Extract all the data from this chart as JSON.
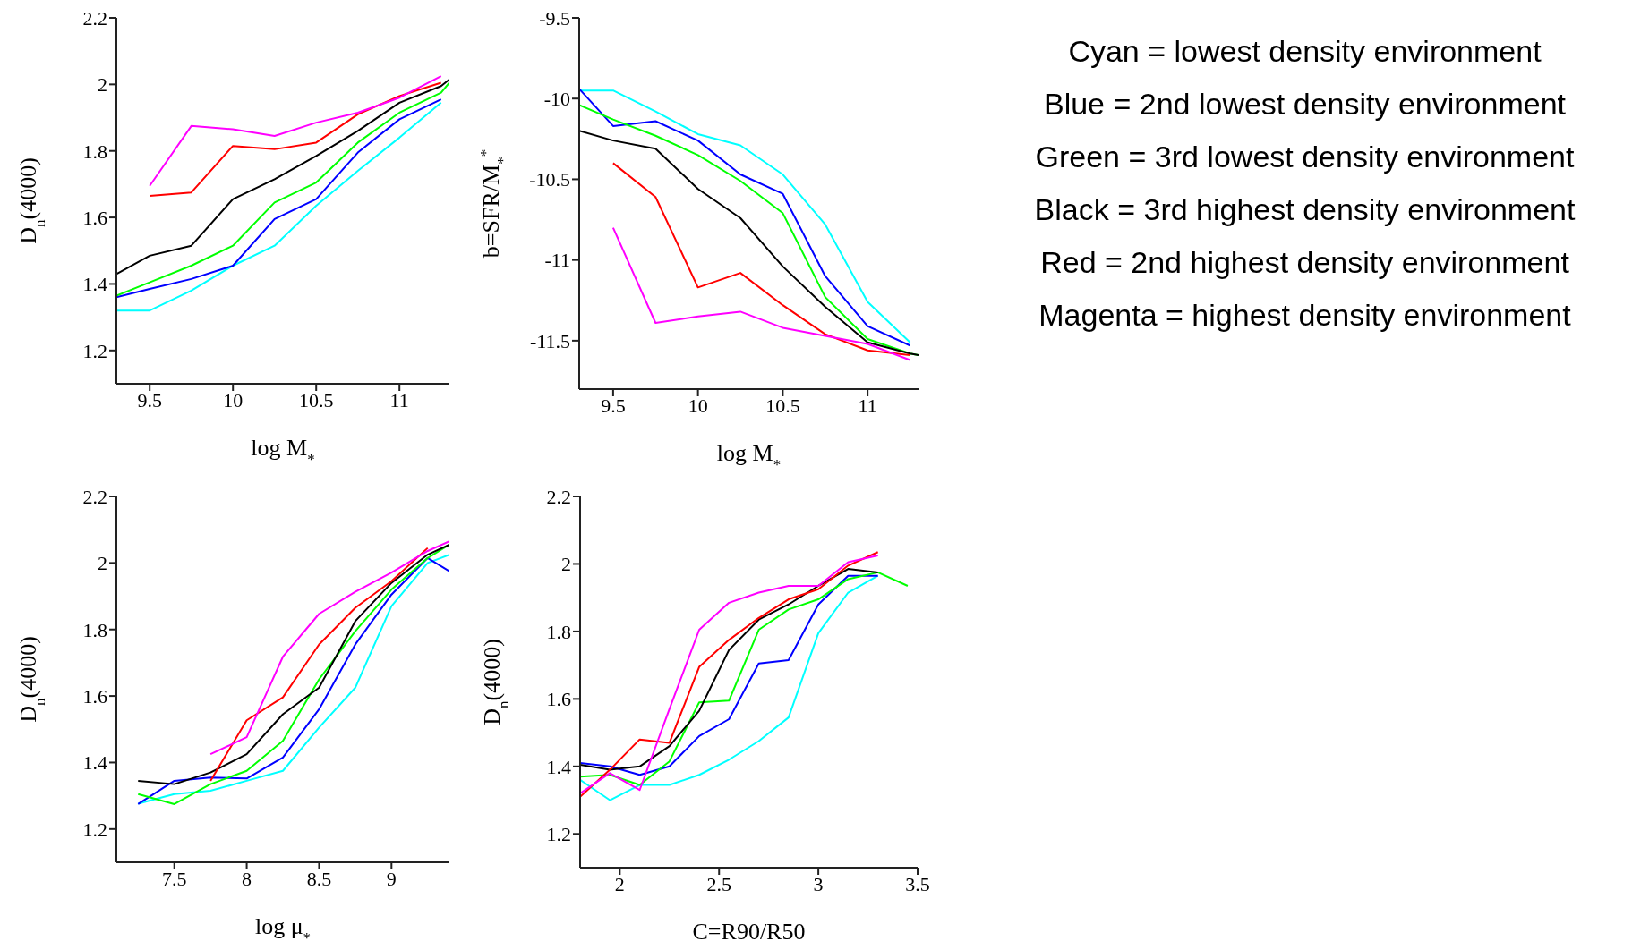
{
  "chart_data": [
    {
      "type": "line",
      "xlabel": "log M$_{*}$",
      "ylabel": "D$_{n}$(4000)",
      "xlim": [
        9.3,
        11.3
      ],
      "ylim": [
        1.1,
        2.2
      ],
      "xticks": [
        9.5,
        10,
        10.5,
        11
      ],
      "yticks": [
        1.2,
        1.4,
        1.6,
        1.8,
        2,
        2.2
      ],
      "grid": false,
      "legend": false,
      "x": [
        9.3,
        9.5,
        9.75,
        10,
        10.25,
        10.5,
        10.75,
        11,
        11.25,
        11.3
      ],
      "series": [
        {
          "color": "#00ffff",
          "values": [
            1.32,
            1.32,
            1.38,
            1.455,
            1.515,
            1.635,
            1.74,
            1.84,
            1.945,
            null
          ]
        },
        {
          "color": "#0000ff",
          "values": [
            1.36,
            1.385,
            1.415,
            1.455,
            1.595,
            1.655,
            1.795,
            1.895,
            1.955,
            null
          ]
        },
        {
          "color": "#00ff00",
          "values": [
            1.365,
            1.405,
            1.455,
            1.515,
            1.645,
            1.705,
            1.825,
            1.915,
            1.975,
            2.005
          ]
        },
        {
          "color": "#000000",
          "values": [
            1.43,
            1.485,
            1.515,
            1.655,
            1.715,
            1.785,
            1.86,
            1.945,
            1.995,
            2.015
          ]
        },
        {
          "color": "#ff0000",
          "values": [
            null,
            1.665,
            1.675,
            1.815,
            1.805,
            1.825,
            1.91,
            1.965,
            2.005,
            null
          ]
        },
        {
          "color": "#ff00ff",
          "values": [
            null,
            1.695,
            1.875,
            1.865,
            1.845,
            1.885,
            1.915,
            1.96,
            2.025,
            null
          ]
        }
      ]
    },
    {
      "type": "line",
      "xlabel": "log M$_{*}$",
      "ylabel": "b=SFR/M$_{*}$$^{*}$",
      "xlim": [
        9.3,
        11.3
      ],
      "ylim": [
        -11.8,
        -9.5
      ],
      "xticks": [
        9.5,
        10,
        10.5,
        11
      ],
      "yticks": [
        -11.5,
        -11,
        -10.5,
        -10,
        -9.5
      ],
      "grid": false,
      "legend": false,
      "x": [
        9.3,
        9.5,
        9.75,
        10,
        10.25,
        10.5,
        10.75,
        11,
        11.25,
        11.3
      ],
      "series": [
        {
          "color": "#00ffff",
          "values": [
            -9.95,
            -9.95,
            -10.08,
            -10.22,
            -10.29,
            -10.47,
            -10.78,
            -11.26,
            -11.51,
            null
          ]
        },
        {
          "color": "#0000ff",
          "values": [
            -9.94,
            -10.17,
            -10.14,
            -10.26,
            -10.47,
            -10.59,
            -11.1,
            -11.41,
            -11.53,
            null
          ]
        },
        {
          "color": "#00ff00",
          "values": [
            -10.04,
            -10.13,
            -10.23,
            -10.35,
            -10.51,
            -10.71,
            -11.23,
            -11.49,
            -11.58,
            -11.59
          ]
        },
        {
          "color": "#000000",
          "values": [
            -10.2,
            -10.26,
            -10.31,
            -10.56,
            -10.74,
            -11.04,
            -11.29,
            -11.51,
            -11.58,
            -11.59
          ]
        },
        {
          "color": "#ff0000",
          "values": [
            null,
            -10.4,
            -10.61,
            -11.17,
            -11.08,
            -11.28,
            -11.46,
            -11.56,
            -11.59,
            null
          ]
        },
        {
          "color": "#ff00ff",
          "values": [
            null,
            -10.8,
            -11.39,
            -11.35,
            -11.32,
            -11.42,
            -11.47,
            -11.52,
            -11.62,
            null
          ]
        }
      ]
    },
    {
      "type": "line",
      "xlabel": "log μ$_{*}$",
      "ylabel": "D$_{n}$(4000)",
      "xlim": [
        7.1,
        9.4
      ],
      "ylim": [
        1.1,
        2.2
      ],
      "xticks": [
        7.5,
        8,
        8.5,
        9
      ],
      "yticks": [
        1.2,
        1.4,
        1.6,
        1.8,
        2,
        2.2
      ],
      "grid": false,
      "legend": false,
      "x": [
        7.25,
        7.5,
        7.75,
        8,
        8.25,
        8.5,
        8.75,
        9,
        9.25,
        9.4
      ],
      "series": [
        {
          "color": "#00ffff",
          "values": [
            1.276,
            1.305,
            1.315,
            1.345,
            1.375,
            1.505,
            1.625,
            1.87,
            2.0,
            2.025
          ]
        },
        {
          "color": "#0000ff",
          "values": [
            1.275,
            1.345,
            1.355,
            1.352,
            1.415,
            1.56,
            1.755,
            1.905,
            2.015,
            1.975
          ]
        },
        {
          "color": "#00ff00",
          "values": [
            1.305,
            1.275,
            1.335,
            1.375,
            1.465,
            1.65,
            1.795,
            1.92,
            2.015,
            2.055
          ]
        },
        {
          "color": "#000000",
          "values": [
            1.345,
            1.335,
            1.37,
            1.425,
            1.545,
            1.625,
            1.825,
            1.94,
            2.025,
            2.055
          ]
        },
        {
          "color": "#ff0000",
          "values": [
            null,
            null,
            1.345,
            1.527,
            1.596,
            1.755,
            1.865,
            1.945,
            2.045,
            null
          ]
        },
        {
          "color": "#ff00ff",
          "values": [
            null,
            null,
            1.425,
            1.476,
            1.718,
            1.847,
            1.913,
            1.971,
            2.036,
            2.065
          ]
        }
      ]
    },
    {
      "type": "line",
      "xlabel": "C=R90/R50",
      "ylabel": "D$_{n}$(4000)",
      "xlim": [
        1.8,
        3.5
      ],
      "ylim": [
        1.1,
        2.2
      ],
      "xticks": [
        2,
        2.5,
        3,
        3.5
      ],
      "yticks": [
        1.2,
        1.4,
        1.6,
        1.8,
        2,
        2.2
      ],
      "grid": false,
      "legend": false,
      "x": [
        1.8,
        1.95,
        2.1,
        2.25,
        2.4,
        2.55,
        2.7,
        2.85,
        3,
        3.15,
        3.3,
        3.45
      ],
      "series": [
        {
          "color": "#00ffff",
          "values": [
            1.36,
            1.3,
            1.345,
            1.345,
            1.375,
            1.42,
            1.475,
            1.545,
            1.795,
            1.915,
            1.965,
            null
          ]
        },
        {
          "color": "#0000ff",
          "values": [
            1.41,
            1.4,
            1.375,
            1.4,
            1.49,
            1.54,
            1.705,
            1.715,
            1.88,
            1.965,
            1.965,
            null
          ]
        },
        {
          "color": "#00ff00",
          "values": [
            1.37,
            1.375,
            1.345,
            1.415,
            1.59,
            1.595,
            1.805,
            1.865,
            1.895,
            1.955,
            1.975,
            1.935
          ]
        },
        {
          "color": "#000000",
          "values": [
            1.405,
            1.39,
            1.4,
            1.46,
            1.565,
            1.745,
            1.835,
            1.88,
            1.935,
            1.985,
            1.975,
            null
          ]
        },
        {
          "color": "#ff0000",
          "values": [
            1.31,
            1.39,
            1.48,
            1.47,
            1.695,
            1.775,
            1.84,
            1.895,
            1.925,
            1.995,
            2.035,
            null
          ]
        },
        {
          "color": "#ff00ff",
          "values": [
            1.32,
            1.38,
            1.33,
            1.57,
            1.805,
            1.885,
            1.915,
            1.935,
            1.935,
            2.005,
            2.025,
            null
          ]
        }
      ]
    },
    {
      "type": "other",
      "annotations": [
        "Cyan = lowest density environment",
        "Blue = 2nd lowest density environment",
        "Green = 3rd lowest density environment",
        "Black = 3rd highest density environment",
        "Red = 2nd highest density environment",
        "Magenta = highest density environment"
      ]
    }
  ]
}
